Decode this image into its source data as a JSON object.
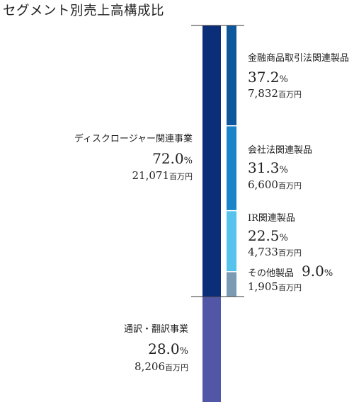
{
  "title": "セグメント別売上高構成比",
  "units": {
    "percent": "%",
    "amount": "百万円"
  },
  "colors": {
    "disclosure": "#0a2e78",
    "translation": "#5157a6",
    "finance": "#0d579c",
    "corporate_law": "#1a84c8",
    "ir": "#56c3ed",
    "other": "#7a9bb3",
    "lines": "#333333"
  },
  "segments": {
    "disclosure": {
      "name": "ディスクロージャー関連事業",
      "pct": "72.0",
      "amount": "21,071"
    },
    "translation": {
      "name": "通訳・翻訳事業",
      "pct": "28.0",
      "amount": "8,206"
    },
    "finance": {
      "name": "金融商品取引法関連製品",
      "pct": "37.2",
      "amount": "7,832"
    },
    "corporate_law": {
      "name": "会社法関連製品",
      "pct": "31.3",
      "amount": "6,600"
    },
    "ir": {
      "name": "IR関連製品",
      "pct": "22.5",
      "amount": "4,733"
    },
    "other": {
      "name": "その他製品",
      "pct": "9.0",
      "amount": "1,905"
    }
  },
  "chart_data": {
    "type": "bar",
    "title": "セグメント別売上高構成比",
    "ylim": [
      0,
      100
    ],
    "series": [
      {
        "name": "",
        "categories": [
          "ディスクロージャー関連事業",
          "通訳・翻訳事業"
        ],
        "values": [
          72.0,
          28.0
        ],
        "amounts": [
          21071,
          8206
        ]
      },
      {
        "name": "",
        "categories": [
          "金融商品取引法関連製品",
          "会社法関連製品",
          "IR関連製品",
          "その他製品"
        ],
        "values": [
          37.2,
          31.3,
          22.5,
          9.0
        ],
        "amounts": [
          7832,
          6600,
          4733,
          1905
        ]
      }
    ]
  }
}
